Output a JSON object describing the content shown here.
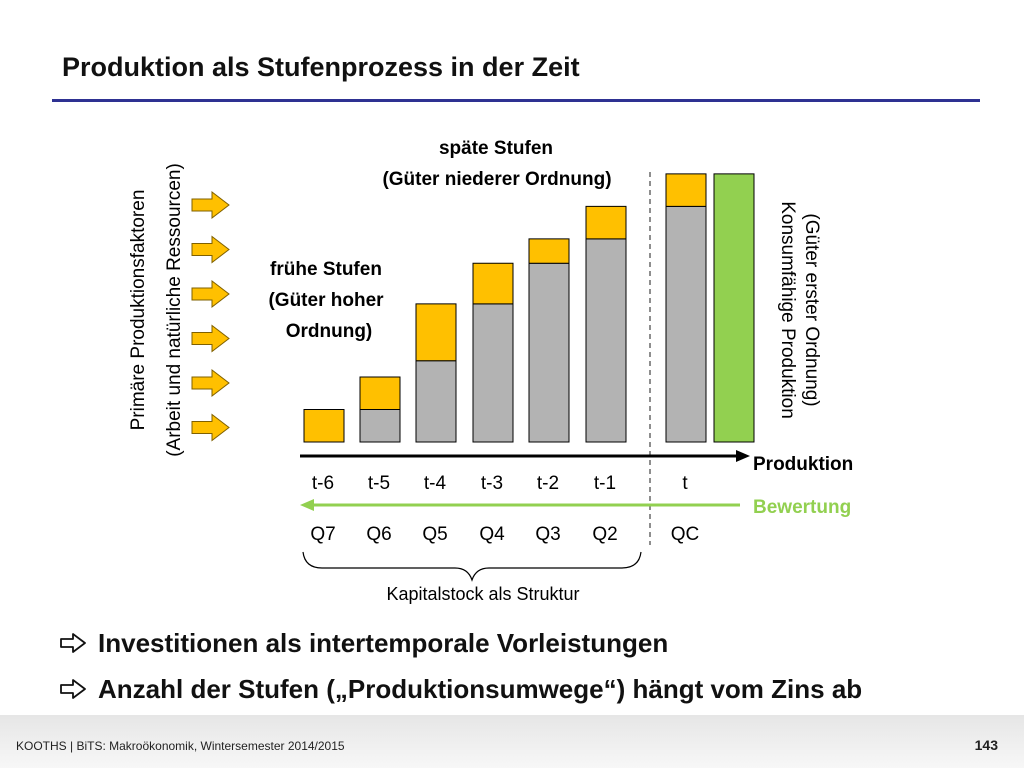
{
  "slide": {
    "title": "Produktion als Stufenprozess in der Zeit"
  },
  "diagram": {
    "left_axis_label_line1": "Primäre Produktionsfaktoren",
    "left_axis_label_line2": "(Arbeit und natürliche Ressourcen)",
    "early_stages_label": [
      "frühe Stufen",
      "(Güter hoher",
      "Ordnung)"
    ],
    "late_stages_label": [
      "späte Stufen",
      "(Güter niederer Ordnung)"
    ],
    "right_label_line1": "Konsumfähige Produktion",
    "right_label_line2": "(Güter erster Ordnung)",
    "production_label": "Produktion",
    "valuation_label": "Bewertung",
    "capital_stock_label": "Kapitalstock als Struktur",
    "input_arrow_count": 6,
    "colors": {
      "gray": "#b3b3b3",
      "gold": "#ffc000",
      "green": "#92d050",
      "valuation_text": "#92d050",
      "title_rule": "#2e3192"
    },
    "stages": [
      {
        "time": "t-6",
        "q": "Q7",
        "gray": 0,
        "gold": 1
      },
      {
        "time": "t-5",
        "q": "Q6",
        "gray": 1,
        "gold": 1
      },
      {
        "time": "t-4",
        "q": "Q5",
        "gray": 2.5,
        "gold": 1.75
      },
      {
        "time": "t-3",
        "q": "Q4",
        "gray": 4.25,
        "gold": 1.25
      },
      {
        "time": "t-2",
        "q": "Q3",
        "gray": 5.5,
        "gold": 0.75
      },
      {
        "time": "t-1",
        "q": "Q2",
        "gray": 6.25,
        "gold": 1
      },
      {
        "time": "t",
        "q": "QC",
        "gray": 7.25,
        "gold": 1
      }
    ],
    "consumer_goods_bar": {
      "value": 8.25
    }
  },
  "bullets": [
    "Investitionen als intertemporale Vorleistungen",
    "Anzahl der Stufen („Produktionsumwege“) hängt vom Zins ab"
  ],
  "footer": {
    "text": "KOOTHS | BiTS: Makroökonomik, Wintersemester 2014/2015",
    "page": "143"
  }
}
